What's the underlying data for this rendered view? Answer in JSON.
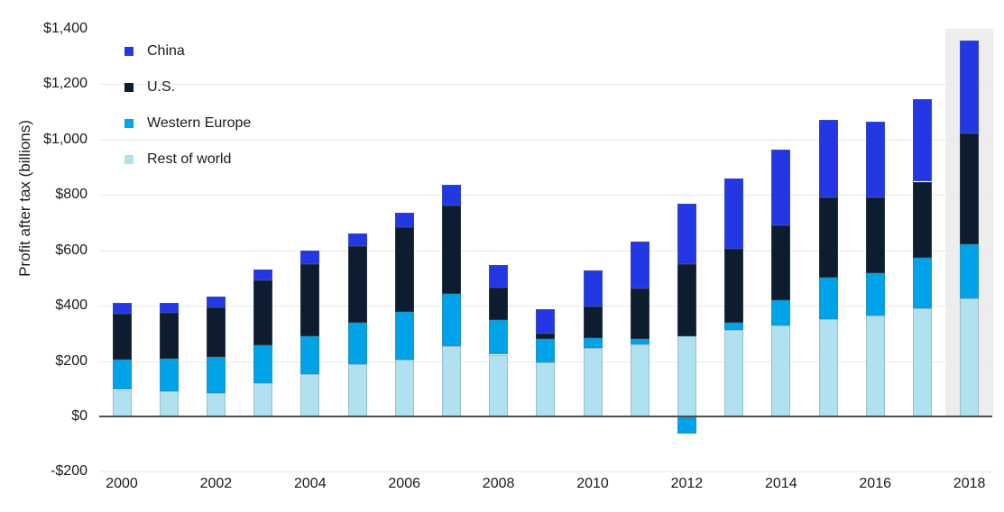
{
  "y_axis": {
    "label": "Profit after tax (billions)",
    "ticks": [
      {
        "value": 1400,
        "label": "$1,400"
      },
      {
        "value": 1200,
        "label": "$1,200"
      },
      {
        "value": 1000,
        "label": "$1,000"
      },
      {
        "value": 800,
        "label": "$800"
      },
      {
        "value": 600,
        "label": "$600"
      },
      {
        "value": 400,
        "label": "$400"
      },
      {
        "value": 200,
        "label": "$200"
      },
      {
        "value": 0,
        "label": "$0"
      },
      {
        "value": -200,
        "label": "-$200"
      }
    ]
  },
  "x_axis": {
    "tick_years": [
      "2000",
      "2002",
      "2004",
      "2006",
      "2008",
      "2010",
      "2012",
      "2014",
      "2016",
      "2018"
    ]
  },
  "legend": [
    {
      "name": "China",
      "color": "#2338e2"
    },
    {
      "name": "U.S.",
      "color": "#0d1d2f"
    },
    {
      "name": "Western Europe",
      "color": "#00a3e8"
    },
    {
      "name": "Rest of world",
      "color": "#afe1f0"
    }
  ],
  "colors": {
    "china": "#2338e2",
    "us": "#0d1d2f",
    "western_europe": "#00a3e8",
    "rest_of_world": "#afe1f0",
    "highlight_band": "#ededee",
    "gridline": "#e9e9eb",
    "zero_axis": "#4d4d4d",
    "text": "#1a1a1a"
  },
  "chart_data": {
    "type": "bar",
    "stacked": true,
    "title": "",
    "xlabel": "",
    "ylabel": "Profit after tax (billions)",
    "units": "USD billions",
    "ylim": [
      -200,
      1400
    ],
    "y_tick_step": 200,
    "grid": true,
    "legend_position": "upper-left-inside",
    "highlighted_category": "2018",
    "categories": [
      "2000",
      "2001",
      "2002",
      "2003",
      "2004",
      "2005",
      "2006",
      "2007",
      "2008",
      "2009",
      "2010",
      "2011",
      "2012",
      "2013",
      "2014",
      "2015",
      "2016",
      "2017",
      "2018"
    ],
    "series": [
      {
        "name": "Rest of world",
        "color": "#afe1f0",
        "values": [
          96,
          91,
          85,
          120,
          152,
          190,
          206,
          253,
          223,
          195,
          246,
          260,
          290,
          312,
          329,
          351,
          366,
          390,
          425
        ]
      },
      {
        "name": "Western Europe",
        "color": "#00a3e8",
        "values": [
          110,
          117,
          130,
          137,
          139,
          150,
          172,
          190,
          124,
          84,
          38,
          20,
          -62,
          27,
          91,
          151,
          152,
          182,
          197
        ]
      },
      {
        "name": "U.S.",
        "color": "#0d1d2f",
        "values": [
          165,
          166,
          178,
          234,
          259,
          276,
          306,
          320,
          119,
          20,
          114,
          181,
          260,
          266,
          269,
          289,
          274,
          276,
          400
        ]
      },
      {
        "name": "China",
        "color": "#2338e2",
        "values": [
          40,
          37,
          41,
          39,
          49,
          45,
          52,
          73,
          81,
          89,
          130,
          172,
          218,
          255,
          275,
          281,
          274,
          299,
          335
        ]
      }
    ]
  }
}
